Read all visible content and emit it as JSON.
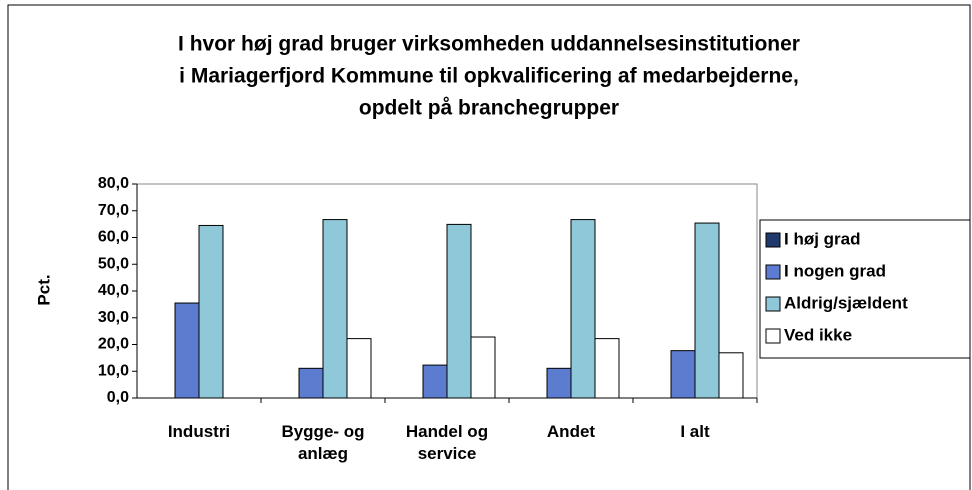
{
  "chart_data": {
    "type": "bar",
    "title": [
      "I hvor høj grad bruger virksomheden uddannelsesinstitutioner",
      "i Mariagerfjord Kommune til opkvalificering af medarbejderne,",
      "opdelt på branchegrupper"
    ],
    "y_label": "Pct.",
    "categories": [
      "Industri",
      "Bygge- og anlæg",
      "Handel og service",
      "Andet",
      "I alt"
    ],
    "series": [
      {
        "name": "I høj grad",
        "color": "#1f3a6b",
        "values": [
          0,
          0,
          0,
          0,
          0
        ]
      },
      {
        "name": "I nogen grad",
        "color": "#5b7ccf",
        "values": [
          35.5,
          11.1,
          12.3,
          11.1,
          17.7
        ]
      },
      {
        "name": "Aldrig/sjældent",
        "color": "#8fc8d8",
        "values": [
          64.5,
          66.7,
          64.9,
          66.7,
          65.4
        ]
      },
      {
        "name": "Ved ikke",
        "color": "#ffffff",
        "values": [
          0,
          22.2,
          22.8,
          22.2,
          16.9
        ]
      }
    ],
    "ylim": [
      0,
      80
    ],
    "yticks": [
      {
        "value": 0,
        "label": "0,0"
      },
      {
        "value": 10,
        "label": "10,0"
      },
      {
        "value": 20,
        "label": "20,0"
      },
      {
        "value": 30,
        "label": "30,0"
      },
      {
        "value": 40,
        "label": "40,0"
      },
      {
        "value": 50,
        "label": "50,0"
      },
      {
        "value": 60,
        "label": "60,0"
      },
      {
        "value": 70,
        "label": "70,0"
      },
      {
        "value": 80,
        "label": "80,0"
      }
    ],
    "legend": "right"
  }
}
